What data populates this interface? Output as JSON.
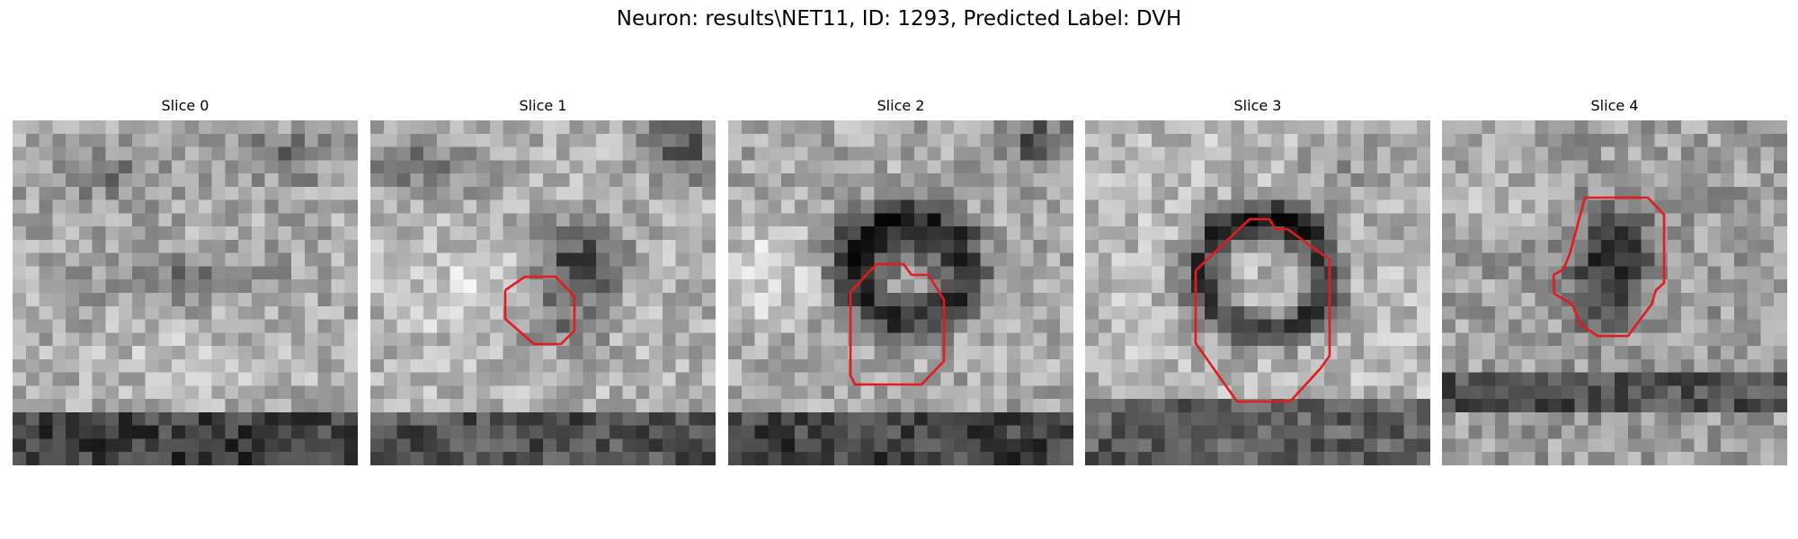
{
  "figure": {
    "title": "Neuron: results\\NET11, ID: 1293, Predicted Label: DVH"
  },
  "contour_color": "#e41a1c",
  "panels": [
    {
      "label": "Slice 0",
      "has_contour": false
    },
    {
      "label": "Slice 1",
      "has_contour": true
    },
    {
      "label": "Slice 2",
      "has_contour": true
    },
    {
      "label": "Slice 3",
      "has_contour": true
    },
    {
      "label": "Slice 4",
      "has_contour": true
    }
  ]
}
